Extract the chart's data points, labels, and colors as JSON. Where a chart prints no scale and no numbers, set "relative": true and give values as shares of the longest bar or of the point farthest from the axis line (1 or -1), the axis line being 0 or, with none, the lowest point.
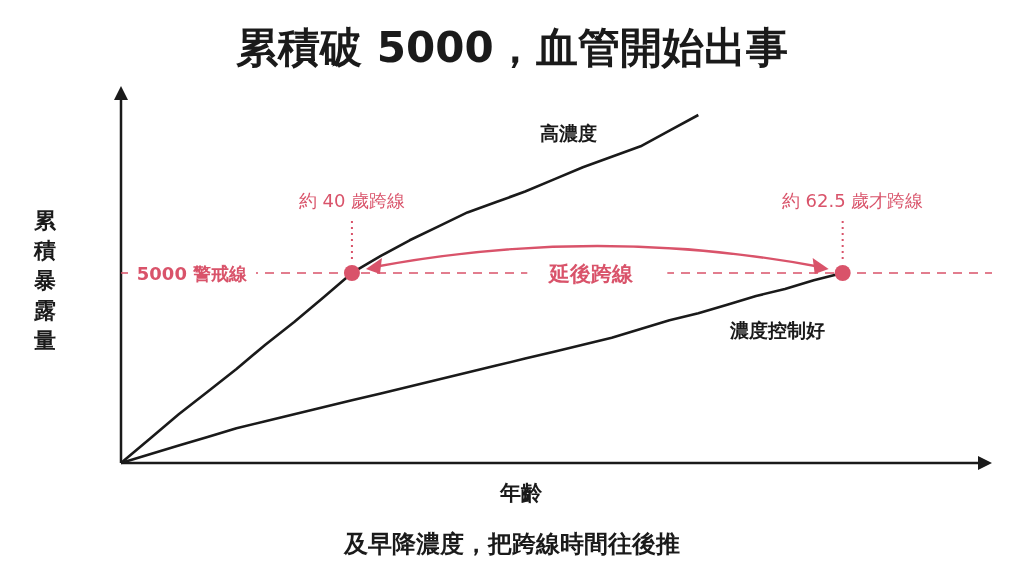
{
  "chart_data": {
    "type": "line",
    "title": "累積破 5000，血管開始出事",
    "xlabel": "年齡",
    "ylabel": "累積暴露量",
    "relative": true,
    "categories": [
      null,
      null,
      null,
      null,
      null,
      null,
      null,
      null,
      null,
      null,
      null,
      null,
      null,
      null,
      null,
      null,
      null,
      null,
      null,
      null,
      null,
      null,
      null,
      null,
      null,
      null,
      null,
      null,
      null,
      null,
      null
    ],
    "series": [
      {
        "name": "高濃度",
        "color": "#1a1a1a",
        "values": [
          0,
          0.07,
          0.14,
          0.205,
          0.27,
          0.34,
          0.405,
          0.475,
          0.546,
          0.595,
          0.64,
          0.68,
          0.72,
          0.75,
          0.78,
          0.815,
          0.85,
          0.88,
          0.91,
          0.955,
          1,
          null,
          null,
          null,
          null,
          null,
          null,
          null,
          null,
          null,
          null
        ]
      },
      {
        "name": "濃度控制好",
        "color": "#1a1a1a",
        "values": [
          0,
          0.025,
          0.05,
          0.075,
          0.1,
          0.12,
          0.14,
          0.16,
          0.18,
          0.2,
          0.22,
          0.24,
          0.26,
          0.28,
          0.3,
          0.32,
          0.34,
          0.36,
          0.385,
          0.41,
          0.43,
          0.455,
          0.48,
          0.5,
          0.525,
          0.546,
          null,
          null,
          null,
          null,
          null
        ]
      }
    ],
    "ref_lines": [
      {
        "axis": "y",
        "value": 0.546,
        "label": "5000 警戒線",
        "color": "#d9536a",
        "line_style": "dashed"
      }
    ],
    "annotations": [
      "約 40 歲跨線",
      "約 62.5 歲才跨線",
      "延後跨線",
      "及早降濃度，把跨線時間往後推"
    ],
    "legend": false,
    "marker": "none",
    "grid": false
  }
}
